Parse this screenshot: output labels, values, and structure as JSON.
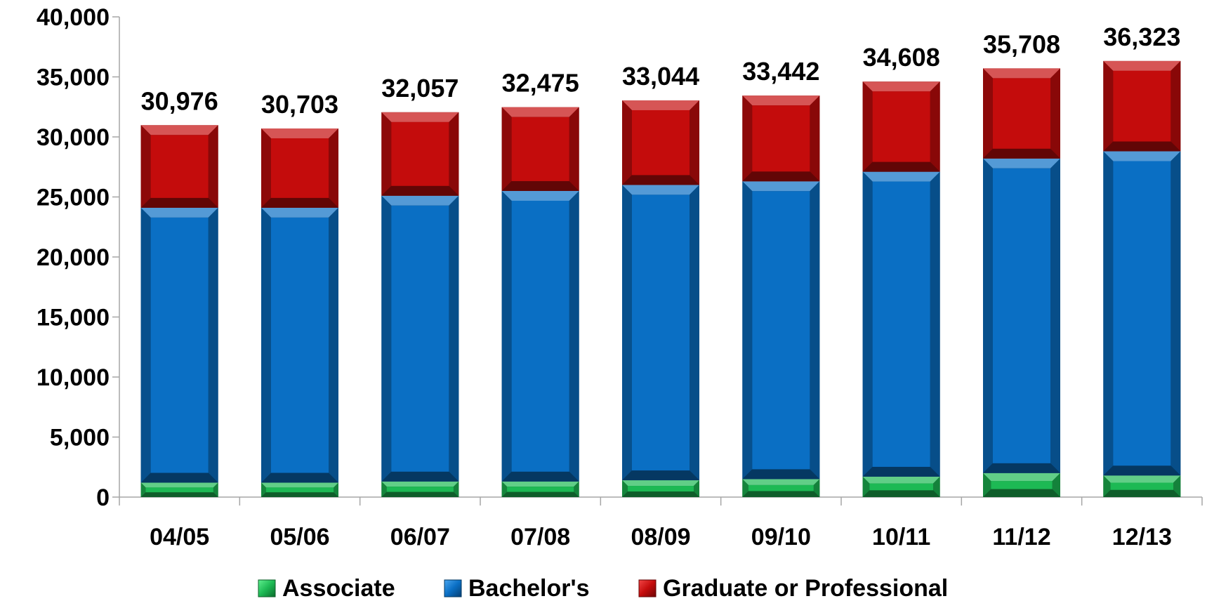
{
  "chart_data": {
    "type": "bar",
    "stacked": true,
    "categories": [
      "04/05",
      "05/06",
      "06/07",
      "07/08",
      "08/09",
      "09/10",
      "10/11",
      "11/12",
      "12/13"
    ],
    "series": [
      {
        "name": "Associate",
        "color": "#1db954",
        "values": [
          1200,
          1200,
          1300,
          1300,
          1400,
          1500,
          1700,
          2000,
          1800
        ]
      },
      {
        "name": "Bachelor's",
        "color": "#0a6fc4",
        "values": [
          22900,
          22900,
          23800,
          24200,
          24600,
          24800,
          25400,
          26200,
          27000
        ]
      },
      {
        "name": "Graduate or Professional",
        "color": "#c40c0c",
        "values": [
          6876,
          6603,
          6957,
          6975,
          7044,
          7142,
          7508,
          7508,
          7523
        ]
      }
    ],
    "totals": [
      "30,976",
      "30,703",
      "32,057",
      "32,475",
      "33,044",
      "33,442",
      "34,608",
      "35,708",
      "36,323"
    ],
    "y_ticks": [
      "0",
      "5,000",
      "10,000",
      "15,000",
      "20,000",
      "25,000",
      "30,000",
      "35,000",
      "40,000"
    ],
    "ylim": [
      0,
      40000
    ],
    "grid": false,
    "legend_position": "bottom"
  }
}
